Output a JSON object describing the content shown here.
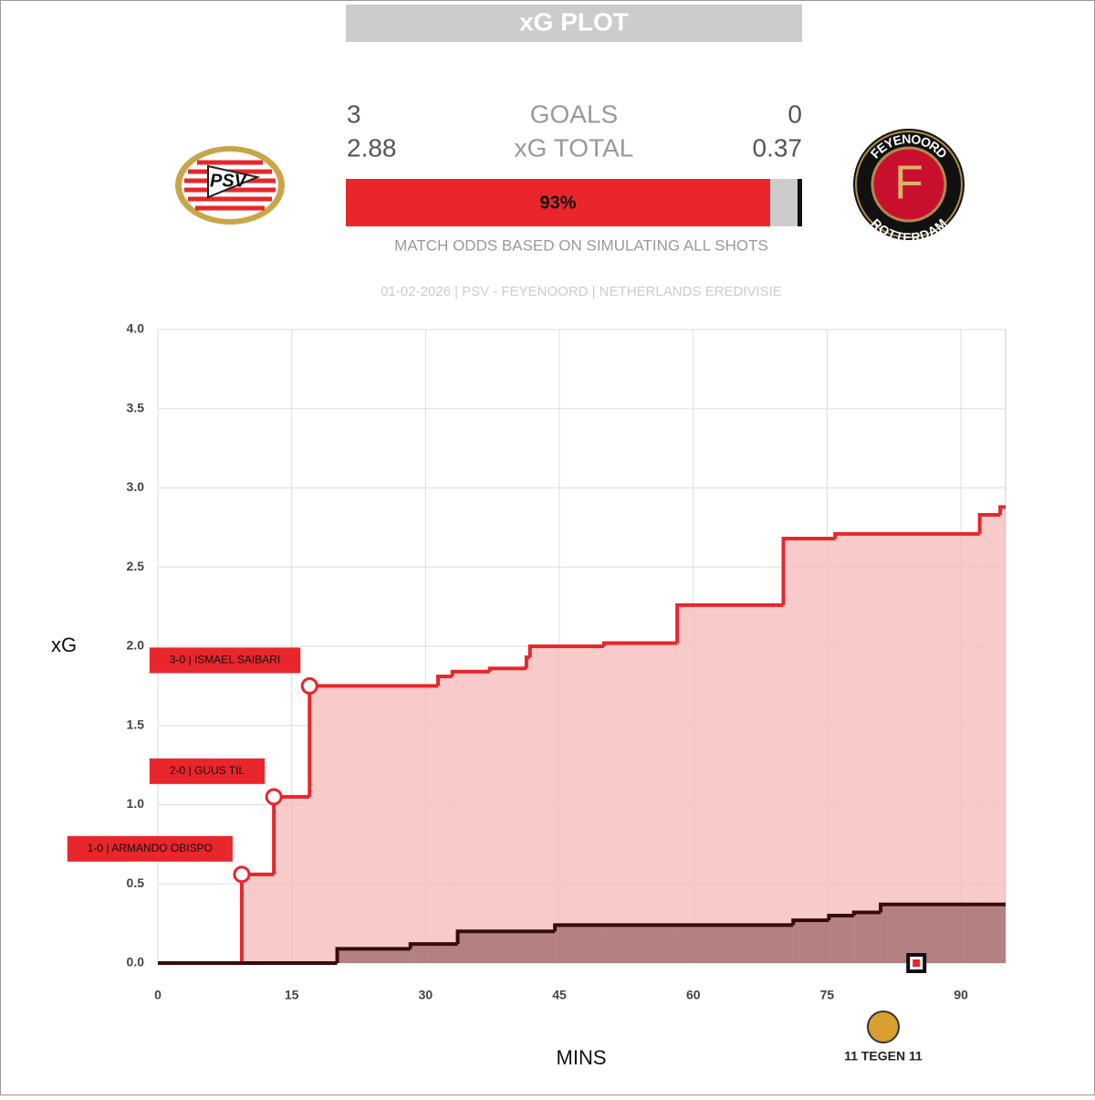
{
  "scoreboard": {
    "title": "xG PLOT",
    "goals_label": "GOALS",
    "xg_label": "xG TOTAL",
    "home_goals": 3,
    "away_goals": 0,
    "home_xg": 2.88,
    "away_xg": 0.37,
    "home_win": 93,
    "home_win_label": "93%",
    "draw": 6,
    "away_win": 1,
    "odds_caption": "MATCH ODDS BASED ON SIMULATING ALL SHOTS",
    "match_info": "01-02-2026 | PSV - FEYENOORD | NETHERLANDS EREDIVISIE",
    "home_logo_text": "PSV",
    "away_logo_text": "FEYENOORD",
    "away_logo_text2": "ROTTERDAM",
    "away_logo_letter": "F",
    "brand": "11 TEGEN 11"
  },
  "chart_data": {
    "type": "step",
    "x_label": "MINS",
    "y_label": "xG",
    "xlim": [
      0,
      95
    ],
    "ylim": [
      0,
      4
    ],
    "grid": true,
    "xticks": [
      0,
      15,
      30,
      45,
      60,
      75,
      90
    ],
    "yticks": [
      {
        "value": 0,
        "label": "0.0"
      },
      0.5,
      {
        "value": 1,
        "label": "1.0"
      },
      1.5,
      {
        "value": 2,
        "label": "2.0"
      },
      2.5,
      {
        "value": 3,
        "label": "3.0"
      },
      3.5,
      {
        "value": 4,
        "label": "4.0"
      }
    ],
    "series": [
      {
        "color": "#e8262b",
        "fill": "#f5b8b8",
        "x": [
          0,
          9.4,
          13.0,
          17.0,
          31.4,
          33.0,
          37.2,
          41.3,
          41.7,
          50.0,
          58.2,
          70.1,
          75.9,
          92.1,
          94.4
        ],
        "values": [
          0,
          0.56,
          1.05,
          1.75,
          1.81,
          1.84,
          1.86,
          1.93,
          2.0,
          2.02,
          2.26,
          2.68,
          2.71,
          2.83,
          2.88
        ]
      },
      {
        "color": "#3a0a0a",
        "fill": "#7a4545",
        "x": [
          0,
          20.1,
          28.3,
          33.6,
          44.5,
          71.2,
          75.2,
          78.0,
          81.0
        ],
        "values": [
          0,
          0.09,
          0.12,
          0.2,
          0.24,
          0.27,
          0.3,
          0.32,
          0.37
        ]
      }
    ],
    "annotations": [
      {
        "text": "1-0 | ARMANDO OBISPO",
        "x": 9.4,
        "y": 0.56
      },
      {
        "text": "2-0 | GUUS TIL",
        "x": 13.0,
        "y": 1.05
      },
      {
        "text": "3-0 | ISMAEL SAIBARI",
        "x": 17.0,
        "y": 1.75
      }
    ],
    "markers": [
      {
        "x": 85.0,
        "y": 0
      }
    ]
  }
}
